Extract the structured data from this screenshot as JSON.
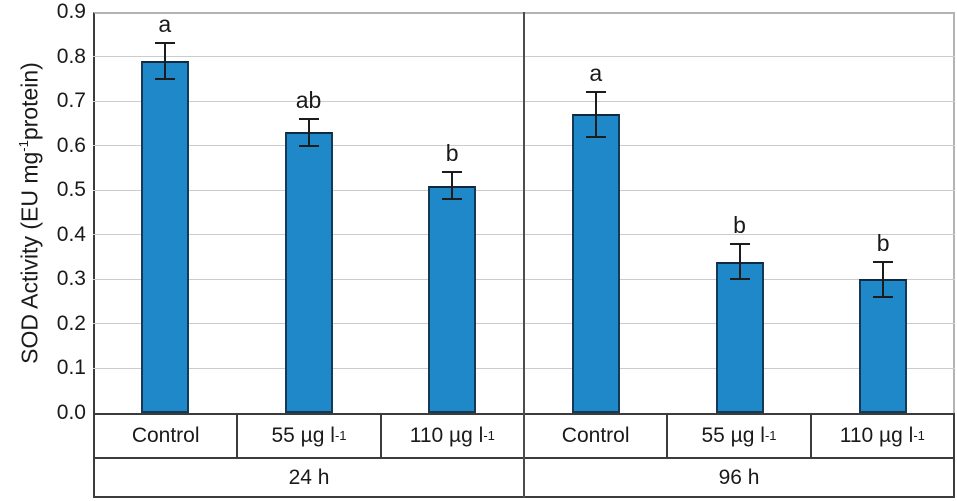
{
  "chart_data": {
    "type": "bar",
    "title": "",
    "ylabel": {
      "pre": "SOD Activity (EU mg",
      "sup": "-1",
      "post": "protein)"
    },
    "ylim": [
      0,
      0.9
    ],
    "yticks": [
      "0.0",
      "0.1",
      "0.2",
      "0.3",
      "0.4",
      "0.5",
      "0.6",
      "0.7",
      "0.8",
      "0.9"
    ],
    "grid": true,
    "legend": "none",
    "bar_color": "#1e88c8",
    "bar_border_color": "#163a56",
    "error_bar_color": "#1c1c1c",
    "gridline_color": "#cccccc",
    "frame_color": "#b3b3b3",
    "axis_color": "#3c3c3c",
    "groups": [
      {
        "label": "24 h",
        "bars": [
          {
            "label": {
              "base": "Control",
              "sup": ""
            },
            "value": 0.79,
            "error": 0.04,
            "letter": "a"
          },
          {
            "label": {
              "base": "55 µg l",
              "sup": "-1"
            },
            "value": 0.63,
            "error": 0.03,
            "letter": "ab"
          },
          {
            "label": {
              "base": "110 µg l",
              "sup": "-1"
            },
            "value": 0.51,
            "error": 0.03,
            "letter": "b"
          }
        ]
      },
      {
        "label": "96 h",
        "bars": [
          {
            "label": {
              "base": "Control",
              "sup": ""
            },
            "value": 0.67,
            "error": 0.05,
            "letter": "a"
          },
          {
            "label": {
              "base": "55 µg l",
              "sup": "-1"
            },
            "value": 0.34,
            "error": 0.04,
            "letter": "b"
          },
          {
            "label": {
              "base": "110 µg l",
              "sup": "-1"
            },
            "value": 0.3,
            "error": 0.04,
            "letter": "b"
          }
        ]
      }
    ]
  }
}
